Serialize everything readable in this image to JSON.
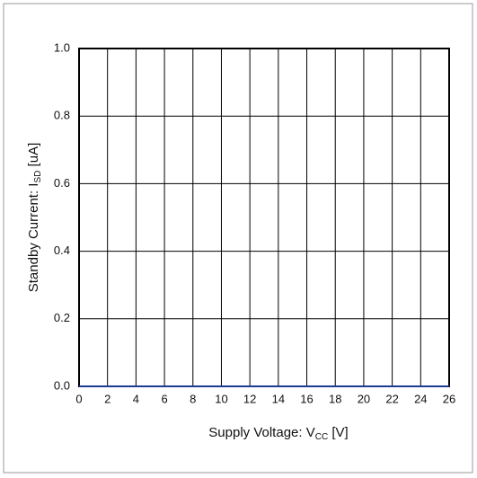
{
  "chart_data": {
    "type": "line",
    "xlabel": {
      "text": "Supply Voltage: V",
      "sub": "CC",
      "unit": " [V]"
    },
    "ylabel": {
      "text": "Standby Current: I",
      "sub": "SD",
      "unit": " [uA]"
    },
    "x": [
      0,
      26
    ],
    "series": [
      {
        "color": "#1f3a93",
        "values": [
          0,
          0
        ]
      }
    ],
    "xlim": [
      0,
      26
    ],
    "xticks": [
      0,
      2,
      4,
      6,
      8,
      10,
      12,
      14,
      16,
      18,
      20,
      22,
      24,
      26
    ],
    "ylim": [
      0,
      1
    ],
    "yticks": [
      {
        "value": 0,
        "label": "0.0"
      },
      0.2,
      0.4,
      0.6,
      0.8,
      {
        "value": 1,
        "label": "1.0"
      }
    ],
    "grid": true
  }
}
